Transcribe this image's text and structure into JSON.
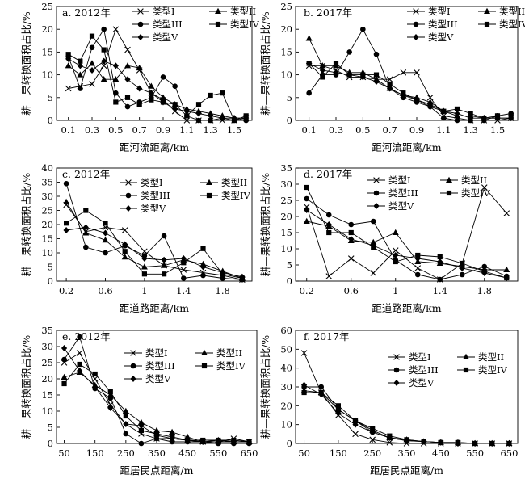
{
  "chart_data": [
    {
      "type": "line",
      "title": "a. 2012年",
      "xlabel": "距河流距离/km",
      "ylabel": "耕—果转换面积占比/%",
      "xlim": [
        0,
        1.65
      ],
      "ylim": [
        0,
        25
      ],
      "xticks": [
        0.1,
        0.3,
        0.5,
        0.7,
        0.9,
        1.1,
        1.3,
        1.5
      ],
      "yticks": [
        0,
        5,
        10,
        15,
        20,
        25
      ],
      "x": [
        0.1,
        0.2,
        0.3,
        0.4,
        0.5,
        0.6,
        0.7,
        0.8,
        0.9,
        1.0,
        1.1,
        1.2,
        1.3,
        1.4,
        1.5,
        1.6
      ],
      "series": [
        {
          "name": "类型I",
          "marker": "x",
          "values": [
            7,
            7.5,
            8,
            12,
            20,
            15.5,
            11,
            6,
            4.5,
            2,
            0,
            0,
            0,
            0,
            0,
            0.5
          ]
        },
        {
          "name": "类型II",
          "marker": "triangle",
          "values": [
            12,
            10,
            12.5,
            9,
            9,
            12,
            11.5,
            7.5,
            5,
            3.5,
            2.5,
            2,
            1.5,
            1,
            0.5,
            0.5
          ]
        },
        {
          "name": "类型III",
          "marker": "circle",
          "values": [
            14,
            7,
            16,
            20,
            6,
            3,
            4,
            5,
            9.5,
            7.5,
            1,
            0,
            0,
            0.5,
            0,
            0
          ]
        },
        {
          "name": "类型IV",
          "marker": "square",
          "values": [
            14.5,
            13,
            18.5,
            15.5,
            4,
            5,
            3.5,
            4.5,
            4,
            3.5,
            1,
            3.5,
            5.5,
            6,
            0,
            1
          ]
        },
        {
          "name": "类型V",
          "marker": "diamond",
          "values": [
            13.5,
            12,
            11,
            13,
            12,
            9,
            7,
            6,
            4,
            2.5,
            2,
            1.5,
            1,
            0.5,
            0.5,
            0.5
          ]
        }
      ]
    },
    {
      "type": "line",
      "title": "b. 2017年",
      "xlabel": "距河流距离/km",
      "ylabel": "耕—果转换面积占比/%",
      "xlim": [
        0,
        1.65
      ],
      "ylim": [
        0,
        25
      ],
      "xticks": [
        0.1,
        0.3,
        0.5,
        0.7,
        0.9,
        1.1,
        1.3,
        1.5
      ],
      "yticks": [
        0,
        5,
        10,
        15,
        20,
        25
      ],
      "x": [
        0.1,
        0.2,
        0.3,
        0.4,
        0.5,
        0.6,
        0.7,
        0.8,
        0.9,
        1.0,
        1.1,
        1.2,
        1.3,
        1.4,
        1.5,
        1.6
      ],
      "series": [
        {
          "name": "类型I",
          "marker": "x",
          "values": [
            12,
            12,
            11,
            9.5,
            9.5,
            9,
            9,
            10.5,
            10.5,
            5,
            1,
            0.5,
            0,
            0,
            0,
            0.5
          ]
        },
        {
          "name": "类型II",
          "marker": "triangle",
          "values": [
            18,
            12,
            12,
            10.5,
            10.5,
            9,
            7,
            5.5,
            5,
            4,
            2,
            1,
            1,
            0.5,
            0.5,
            0.5
          ]
        },
        {
          "name": "类型III",
          "marker": "circle",
          "values": [
            6,
            10,
            10,
            15,
            20,
            14.5,
            7,
            5,
            4,
            3,
            0.5,
            0,
            0,
            0,
            1,
            1.5
          ]
        },
        {
          "name": "类型IV",
          "marker": "square",
          "values": [
            12.5,
            9.5,
            12.5,
            10,
            10,
            10,
            8,
            6,
            4.5,
            3.5,
            2,
            2.5,
            1.5,
            0.5,
            1,
            1
          ]
        },
        {
          "name": "类型V",
          "marker": "diamond",
          "values": [
            12.5,
            11,
            10.5,
            10,
            9.5,
            8.5,
            7,
            5.5,
            4.5,
            3,
            2,
            1.5,
            0.5,
            0.5,
            0.5,
            0.5
          ]
        }
      ]
    },
    {
      "type": "line",
      "title": "c. 2012年",
      "xlabel": "距道路距离/km",
      "ylabel": "耕—果转换面积占比/%",
      "xlim": [
        0.1,
        2.1
      ],
      "ylim": [
        0,
        40
      ],
      "xticks": [
        0.2,
        0.6,
        1.0,
        1.4,
        1.8
      ],
      "xticklabels": [
        "0.2",
        "0.6",
        "1",
        "1.4",
        "1.8"
      ],
      "yticks": [
        0,
        5,
        10,
        15,
        20,
        25,
        30,
        35,
        40
      ],
      "x": [
        0.2,
        0.4,
        0.6,
        0.8,
        1.0,
        1.2,
        1.4,
        1.6,
        1.8,
        2.0
      ],
      "series": [
        {
          "name": "类型I",
          "marker": "x",
          "values": [
            27,
            17.5,
            19,
            18,
            10.5,
            5.5,
            4,
            3,
            2,
            0.5
          ]
        },
        {
          "name": "类型II",
          "marker": "triangle",
          "values": [
            28,
            17,
            14.5,
            8.5,
            5,
            5.5,
            7.5,
            6,
            3.5,
            1
          ]
        },
        {
          "name": "类型III",
          "marker": "circle",
          "values": [
            34.5,
            12,
            10,
            12.5,
            9,
            16,
            1,
            2,
            1,
            0.5
          ]
        },
        {
          "name": "类型IV",
          "marker": "square",
          "values": [
            20.5,
            25,
            20.5,
            10.5,
            2.5,
            2.5,
            6.5,
            11.5,
            2.5,
            1
          ]
        },
        {
          "name": "类型V",
          "marker": "diamond",
          "values": [
            18,
            19,
            17,
            13,
            8,
            7.5,
            8,
            5,
            3,
            1.5
          ]
        }
      ]
    },
    {
      "type": "line",
      "title": "d. 2017年",
      "xlabel": "距道路距离/km",
      "ylabel": "耕—果转换面积占比/%",
      "xlim": [
        0.1,
        2.1
      ],
      "ylim": [
        0,
        35
      ],
      "xticks": [
        0.2,
        0.6,
        1.0,
        1.4,
        1.8
      ],
      "xticklabels": [
        "0.2",
        "0.6",
        "1",
        "1.4",
        "1.8"
      ],
      "yticks": [
        0,
        5,
        10,
        15,
        20,
        25,
        30,
        35
      ],
      "x": [
        0.2,
        0.4,
        0.6,
        0.8,
        1.0,
        1.2,
        1.4,
        1.6,
        1.8,
        2.0
      ],
      "series": [
        {
          "name": "类型I",
          "marker": "x",
          "values": [
            23,
            1.5,
            7,
            2.5,
            9.5,
            4,
            0.5,
            5.5,
            29,
            21
          ]
        },
        {
          "name": "类型II",
          "marker": "triangle",
          "values": [
            18.5,
            17,
            12.5,
            12,
            15,
            6,
            5.5,
            4.5,
            3.5,
            3.5
          ]
        },
        {
          "name": "类型III",
          "marker": "circle",
          "values": [
            25.5,
            20.5,
            17.5,
            18.5,
            6.5,
            2,
            0.5,
            2,
            4.5,
            1.5
          ]
        },
        {
          "name": "类型IV",
          "marker": "square",
          "values": [
            29,
            15,
            15,
            10.5,
            6,
            8,
            7.5,
            5.5,
            3,
            1
          ]
        },
        {
          "name": "类型V",
          "marker": "diamond",
          "values": [
            22,
            17.5,
            13,
            11,
            8,
            7,
            6,
            4,
            2.5,
            1
          ]
        }
      ]
    },
    {
      "type": "line",
      "title": "e. 2012年",
      "xlabel": "距居民点距离/m",
      "ylabel": "耕—果转换面积占比/%",
      "xlim": [
        25,
        675
      ],
      "ylim": [
        0,
        35
      ],
      "xticks": [
        50,
        150,
        250,
        350,
        450,
        550,
        650
      ],
      "yticks": [
        0,
        5,
        10,
        15,
        20,
        25,
        30,
        35
      ],
      "x": [
        50,
        100,
        150,
        200,
        250,
        300,
        350,
        400,
        450,
        500,
        550,
        600,
        650
      ],
      "series": [
        {
          "name": "类型I",
          "marker": "x",
          "values": [
            25,
            28,
            20,
            12,
            6,
            3,
            1.5,
            1.5,
            1,
            0.5,
            0.5,
            1.5,
            0.5
          ]
        },
        {
          "name": "类型II",
          "marker": "triangle",
          "values": [
            20.5,
            22,
            18,
            15,
            10,
            6.5,
            4,
            3.5,
            2,
            0.5,
            1,
            0.5,
            0.5
          ]
        },
        {
          "name": "类型III",
          "marker": "circle",
          "values": [
            26,
            33,
            17,
            14,
            3,
            0,
            1.5,
            0.5,
            0.5,
            0.5,
            0,
            0,
            0
          ]
        },
        {
          "name": "类型IV",
          "marker": "square",
          "values": [
            18.5,
            24.5,
            21.5,
            16,
            8.5,
            4,
            3,
            2,
            1,
            1,
            1,
            1,
            0.5
          ]
        },
        {
          "name": "类型V",
          "marker": "diamond",
          "values": [
            29.5,
            22.5,
            17.5,
            11,
            6,
            5.5,
            2.5,
            1.5,
            1,
            0.5,
            0.5,
            0.5,
            0.5
          ]
        }
      ]
    },
    {
      "type": "line",
      "title": "f. 2017年",
      "xlabel": "距居民点距离/m",
      "ylabel": "耕—果转换面积占比/%",
      "xlim": [
        25,
        675
      ],
      "ylim": [
        0,
        60
      ],
      "xticks": [
        50,
        150,
        250,
        350,
        450,
        550,
        650
      ],
      "yticks": [
        0,
        10,
        20,
        30,
        40,
        50,
        60
      ],
      "x": [
        50,
        100,
        150,
        200,
        250,
        300,
        350,
        400,
        450,
        500,
        550,
        600,
        650
      ],
      "series": [
        {
          "name": "类型I",
          "marker": "x",
          "values": [
            48,
            27,
            15,
            5,
            2,
            0.5,
            0,
            0,
            0,
            0,
            0,
            0,
            0
          ]
        },
        {
          "name": "类型II",
          "marker": "triangle",
          "values": [
            28,
            27,
            18,
            12,
            7,
            3,
            2,
            1,
            0.5,
            0.5,
            0,
            0,
            0
          ]
        },
        {
          "name": "类型III",
          "marker": "circle",
          "values": [
            30,
            30,
            18,
            12,
            6,
            3,
            1.5,
            1,
            0.5,
            0,
            0,
            0,
            0
          ]
        },
        {
          "name": "类型IV",
          "marker": "square",
          "values": [
            27,
            27,
            20,
            12,
            8,
            4,
            2,
            1,
            0.5,
            0.5,
            0,
            0,
            0
          ]
        },
        {
          "name": "类型V",
          "marker": "diamond",
          "values": [
            31,
            26,
            16,
            10,
            6,
            3,
            1.5,
            1,
            0.5,
            0,
            0,
            0,
            0
          ]
        }
      ]
    }
  ]
}
